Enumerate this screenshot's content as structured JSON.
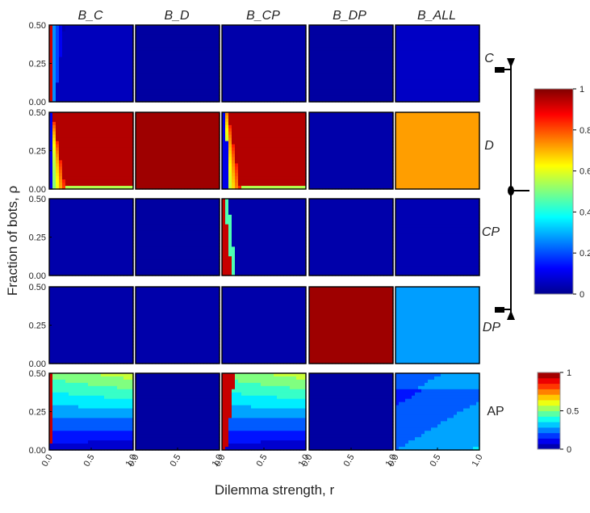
{
  "chart_data": {
    "type": "heatmap",
    "title": "",
    "xlabel": "Dilemma strength, r",
    "ylabel": "Fraction of bots, ρ",
    "xlim": [
      0,
      1
    ],
    "ylim": [
      0,
      0.5
    ],
    "x_ticks": [
      "0.0",
      "0.5",
      "1.0"
    ],
    "y_ticks": [
      "0.00",
      "0.25",
      "0.50"
    ],
    "columns": [
      "B_C",
      "B_D",
      "B_CP",
      "B_DP",
      "B_ALL"
    ],
    "rows": [
      "C",
      "D",
      "CP",
      "DP",
      "AP"
    ],
    "panels": [
      {
        "row": "C",
        "col": "B_C",
        "pattern": "edge_red",
        "value": 0.05,
        "edge_r": 0.04,
        "transition": 0.12
      },
      {
        "row": "C",
        "col": "B_D",
        "pattern": "uniform",
        "value": 0.02
      },
      {
        "row": "C",
        "col": "B_CP",
        "pattern": "uniform",
        "value": 0.03
      },
      {
        "row": "C",
        "col": "B_DP",
        "pattern": "uniform",
        "value": 0.02
      },
      {
        "row": "C",
        "col": "B_ALL",
        "pattern": "uniform",
        "value": 0.06
      },
      {
        "row": "D",
        "col": "B_C",
        "pattern": "curve_high",
        "value": 0.95,
        "edge_r": 0.02,
        "transition": 0.2
      },
      {
        "row": "D",
        "col": "B_D",
        "pattern": "uniform",
        "value": 0.97
      },
      {
        "row": "D",
        "col": "B_CP",
        "pattern": "curve_high",
        "value": 0.95,
        "edge_r": 0.05,
        "transition": 0.2
      },
      {
        "row": "D",
        "col": "B_DP",
        "pattern": "uniform",
        "value": 0.03
      },
      {
        "row": "D",
        "col": "B_ALL",
        "pattern": "uniform",
        "value": 0.72
      },
      {
        "row": "CP",
        "col": "B_C",
        "pattern": "uniform",
        "value": 0.03
      },
      {
        "row": "CP",
        "col": "B_D",
        "pattern": "uniform",
        "value": 0.02
      },
      {
        "row": "CP",
        "col": "B_CP",
        "pattern": "curve_red",
        "value": 0.03,
        "edge_r": 0.1,
        "transition": 0.1
      },
      {
        "row": "CP",
        "col": "B_DP",
        "pattern": "uniform",
        "value": 0.03
      },
      {
        "row": "CP",
        "col": "B_ALL",
        "pattern": "uniform",
        "value": 0.04
      },
      {
        "row": "DP",
        "col": "B_C",
        "pattern": "uniform",
        "value": 0.03
      },
      {
        "row": "DP",
        "col": "B_D",
        "pattern": "uniform",
        "value": 0.03
      },
      {
        "row": "DP",
        "col": "B_CP",
        "pattern": "uniform",
        "value": 0.03
      },
      {
        "row": "DP",
        "col": "B_DP",
        "pattern": "uniform",
        "value": 0.97
      },
      {
        "row": "DP",
        "col": "B_ALL",
        "pattern": "uniform",
        "value": 0.28
      },
      {
        "row": "AP",
        "col": "B_C",
        "pattern": "ap_gradient",
        "value": 0.5,
        "edge_r": 0.04
      },
      {
        "row": "AP",
        "col": "B_D",
        "pattern": "uniform",
        "value": 0.02
      },
      {
        "row": "AP",
        "col": "B_CP",
        "pattern": "ap_gradient",
        "value": 0.5,
        "edge_r": 0.13
      },
      {
        "row": "AP",
        "col": "B_DP",
        "pattern": "uniform",
        "value": 0.02
      },
      {
        "row": "AP",
        "col": "B_ALL",
        "pattern": "ap_low",
        "value": 0.15
      }
    ],
    "colorbar_main": {
      "ticks": [
        "1",
        "0.8",
        "0.6",
        "0.4",
        "0.2",
        "0"
      ],
      "range": [
        0,
        1
      ]
    },
    "colorbar_ap": {
      "ticks": [
        "1",
        "0.5",
        "0"
      ],
      "range": [
        0,
        1
      ],
      "discrete": true
    },
    "diagram": {
      "labels": [
        "C",
        "D",
        "CP",
        "DP"
      ]
    }
  }
}
